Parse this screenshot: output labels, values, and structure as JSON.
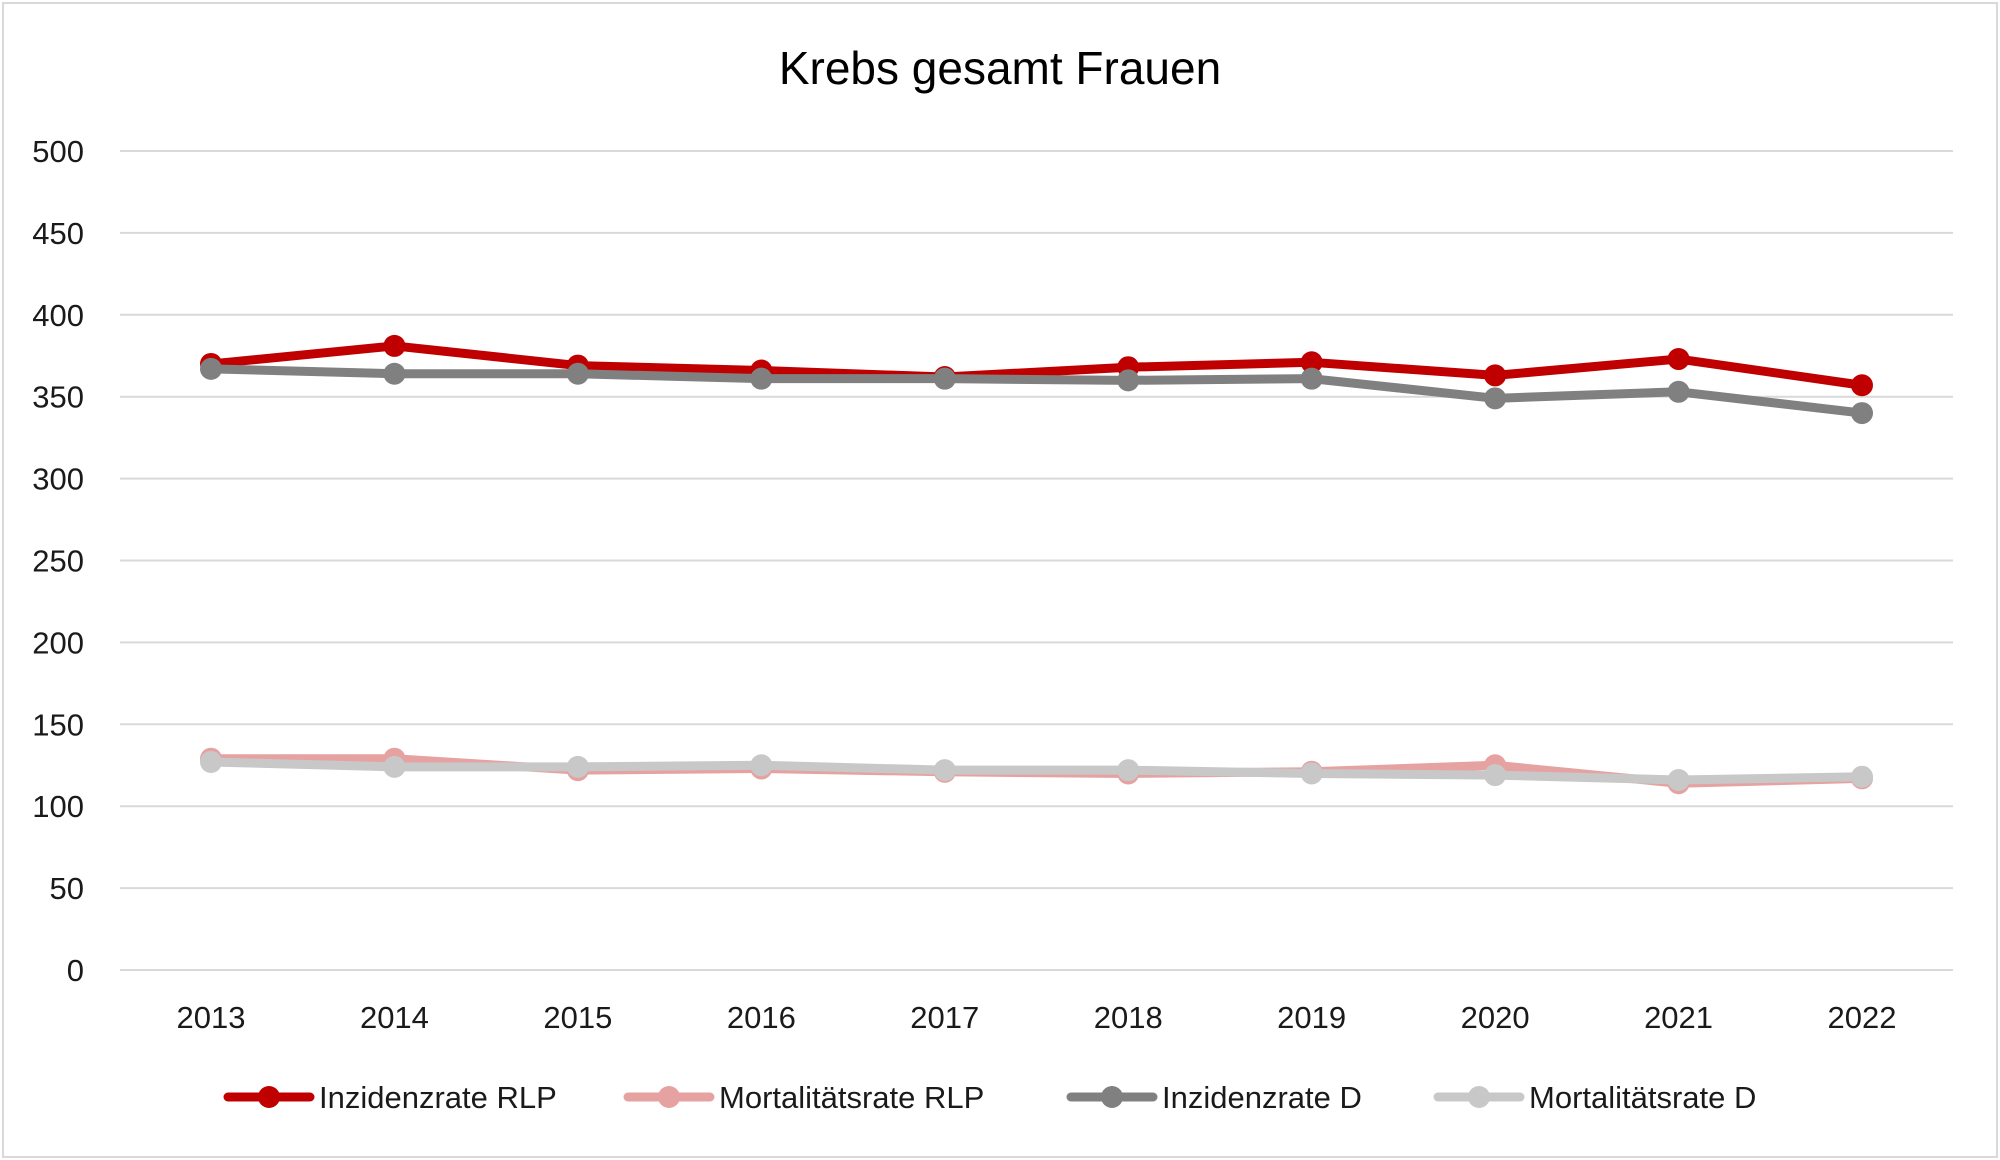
{
  "chart_data": {
    "type": "line",
    "title": "Krebs gesamt Frauen",
    "xlabel": "",
    "ylabel": "",
    "categories": [
      "2013",
      "2014",
      "2015",
      "2016",
      "2017",
      "2018",
      "2019",
      "2020",
      "2021",
      "2022"
    ],
    "ylim": [
      0,
      500
    ],
    "yticks": [
      "0",
      "50",
      "100",
      "150",
      "200",
      "250",
      "300",
      "350",
      "400",
      "450",
      "500"
    ],
    "grid": true,
    "legend_position": "bottom",
    "series": [
      {
        "name": "Inzidenzrate RLP",
        "color": "#c00000",
        "values": [
          370,
          381,
          369,
          366,
          362,
          368,
          371,
          363,
          373,
          357
        ]
      },
      {
        "name": "Mortalitätsrate RLP",
        "color": "#e6a1a1",
        "values": [
          129,
          129,
          122,
          123,
          121,
          120,
          121,
          125,
          114,
          117
        ]
      },
      {
        "name": "Inzidenzrate D",
        "color": "#808080",
        "values": [
          367,
          364,
          364,
          361,
          361,
          360,
          361,
          349,
          353,
          340
        ]
      },
      {
        "name": "Mortalitätsrate D",
        "color": "#c8c8c8",
        "values": [
          127,
          124,
          124,
          125,
          122,
          122,
          120,
          119,
          116,
          118
        ]
      }
    ]
  }
}
